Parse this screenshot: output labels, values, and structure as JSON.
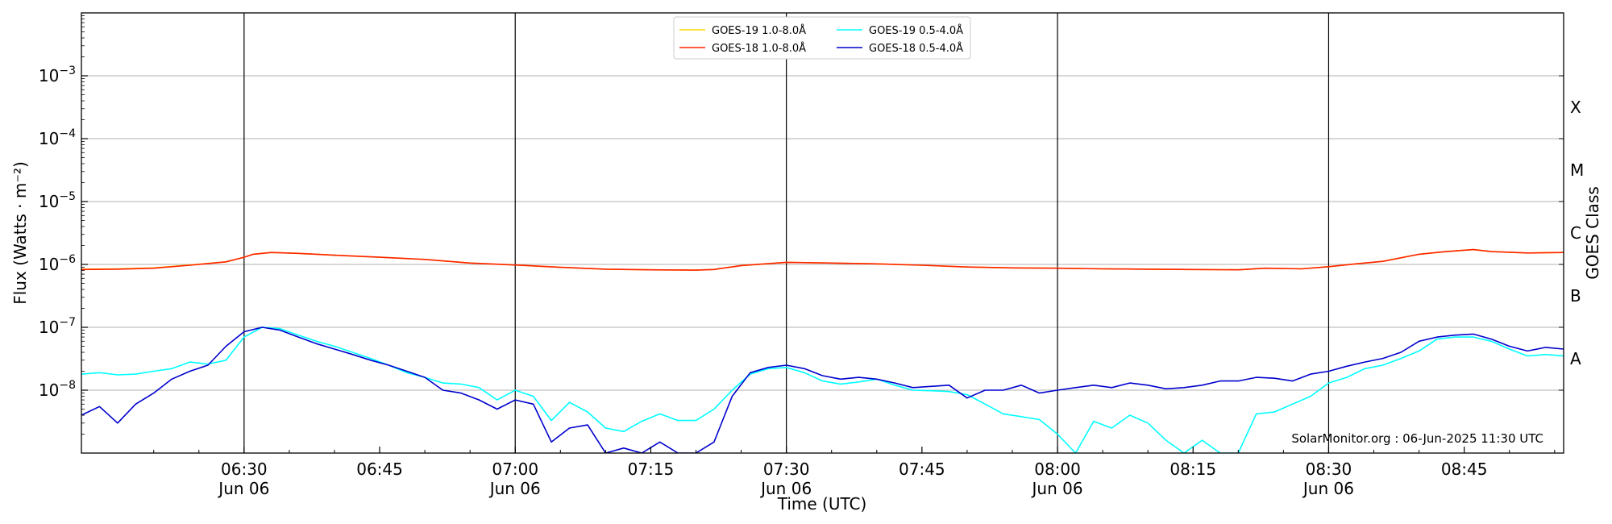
{
  "chart_data": {
    "type": "line",
    "credit": "SolarMonitor.org : 06-Jun-2025 11:30 UTC",
    "xlabel": "Time (UTC)",
    "ylabel": "Flux (Watts · m⁻²)",
    "y2label": "GOES Class",
    "yscale": "log",
    "xlim": [
      "06:12",
      "08:56"
    ],
    "ylim": [
      1e-09,
      0.01
    ],
    "grid": "horizontal at decades",
    "legend_position": "top-center",
    "x_ticks": [
      {
        "time": "06:30",
        "label": "06:30",
        "sublabel": "Jun 06"
      },
      {
        "time": "06:45",
        "label": "06:45",
        "sublabel": ""
      },
      {
        "time": "07:00",
        "label": "07:00",
        "sublabel": "Jun 06"
      },
      {
        "time": "07:15",
        "label": "07:15",
        "sublabel": ""
      },
      {
        "time": "07:30",
        "label": "07:30",
        "sublabel": "Jun 06"
      },
      {
        "time": "07:45",
        "label": "07:45",
        "sublabel": ""
      },
      {
        "time": "08:00",
        "label": "08:00",
        "sublabel": "Jun 06"
      },
      {
        "time": "08:15",
        "label": "08:15",
        "sublabel": ""
      },
      {
        "time": "08:30",
        "label": "08:30",
        "sublabel": "Jun 06"
      },
      {
        "time": "08:45",
        "label": "08:45",
        "sublabel": ""
      }
    ],
    "y_ticks": [
      {
        "exp": -3,
        "base": "10",
        "sup": "−3"
      },
      {
        "exp": -4,
        "base": "10",
        "sup": "−4"
      },
      {
        "exp": -5,
        "base": "10",
        "sup": "−5"
      },
      {
        "exp": -6,
        "base": "10",
        "sup": "−6"
      },
      {
        "exp": -7,
        "base": "10",
        "sup": "−7"
      },
      {
        "exp": -8,
        "base": "10",
        "sup": "−8"
      }
    ],
    "vlines": [
      "06:30",
      "07:00",
      "07:30",
      "08:00",
      "08:30"
    ],
    "goes_classes": [
      {
        "label": "X",
        "exp": -3.5
      },
      {
        "label": "M",
        "exp": -4.5
      },
      {
        "label": "C",
        "exp": -5.5
      },
      {
        "label": "B",
        "exp": -6.5
      },
      {
        "label": "A",
        "exp": -7.5
      }
    ],
    "series": [
      {
        "name": "GOES-19 1.0-8.0Å",
        "color": "#ffd700",
        "points": [
          [
            "06:12",
            8.4e-07
          ],
          [
            "06:16",
            8.5e-07
          ],
          [
            "06:20",
            8.8e-07
          ],
          [
            "06:24",
            9.8e-07
          ],
          [
            "06:28",
            1.1e-06
          ],
          [
            "06:30",
            1.3e-06
          ],
          [
            "06:31",
            1.45e-06
          ],
          [
            "06:33",
            1.55e-06
          ],
          [
            "06:36",
            1.5e-06
          ],
          [
            "06:40",
            1.4e-06
          ],
          [
            "06:45",
            1.3e-06
          ],
          [
            "06:50",
            1.2e-06
          ],
          [
            "06:55",
            1.05e-06
          ],
          [
            "07:00",
            9.8e-07
          ],
          [
            "07:05",
            9e-07
          ],
          [
            "07:10",
            8.4e-07
          ],
          [
            "07:15",
            8.2e-07
          ],
          [
            "07:20",
            8.1e-07
          ],
          [
            "07:22",
            8.3e-07
          ],
          [
            "07:25",
            9.6e-07
          ],
          [
            "07:30",
            1.08e-06
          ],
          [
            "07:35",
            1.05e-06
          ],
          [
            "07:40",
            1.02e-06
          ],
          [
            "07:45",
            9.7e-07
          ],
          [
            "07:50",
            9.1e-07
          ],
          [
            "07:55",
            8.8e-07
          ],
          [
            "08:00",
            8.7e-07
          ],
          [
            "08:05",
            8.5e-07
          ],
          [
            "08:10",
            8.4e-07
          ],
          [
            "08:15",
            8.3e-07
          ],
          [
            "08:20",
            8.2e-07
          ],
          [
            "08:23",
            8.7e-07
          ],
          [
            "08:27",
            8.5e-07
          ],
          [
            "08:30",
            9.2e-07
          ],
          [
            "08:33",
            1.02e-06
          ],
          [
            "08:36",
            1.12e-06
          ],
          [
            "08:40",
            1.45e-06
          ],
          [
            "08:43",
            1.6e-06
          ],
          [
            "08:46",
            1.72e-06
          ],
          [
            "08:48",
            1.6e-06
          ],
          [
            "08:52",
            1.52e-06
          ],
          [
            "08:56",
            1.55e-06
          ]
        ]
      },
      {
        "name": "GOES-18 1.0-8.0Å",
        "color": "#ff2200",
        "points": [
          [
            "06:12",
            8.3e-07
          ],
          [
            "06:16",
            8.4e-07
          ],
          [
            "06:20",
            8.7e-07
          ],
          [
            "06:24",
            9.7e-07
          ],
          [
            "06:28",
            1.1e-06
          ],
          [
            "06:30",
            1.3e-06
          ],
          [
            "06:31",
            1.45e-06
          ],
          [
            "06:33",
            1.55e-06
          ],
          [
            "06:36",
            1.5e-06
          ],
          [
            "06:40",
            1.4e-06
          ],
          [
            "06:45",
            1.3e-06
          ],
          [
            "06:50",
            1.2e-06
          ],
          [
            "06:55",
            1.05e-06
          ],
          [
            "07:00",
            9.8e-07
          ],
          [
            "07:05",
            9e-07
          ],
          [
            "07:10",
            8.4e-07
          ],
          [
            "07:15",
            8.2e-07
          ],
          [
            "07:20",
            8.1e-07
          ],
          [
            "07:22",
            8.3e-07
          ],
          [
            "07:25",
            9.6e-07
          ],
          [
            "07:30",
            1.08e-06
          ],
          [
            "07:35",
            1.05e-06
          ],
          [
            "07:40",
            1.02e-06
          ],
          [
            "07:45",
            9.7e-07
          ],
          [
            "07:50",
            9.1e-07
          ],
          [
            "07:55",
            8.8e-07
          ],
          [
            "08:00",
            8.7e-07
          ],
          [
            "08:05",
            8.5e-07
          ],
          [
            "08:10",
            8.4e-07
          ],
          [
            "08:15",
            8.3e-07
          ],
          [
            "08:20",
            8.2e-07
          ],
          [
            "08:23",
            8.7e-07
          ],
          [
            "08:27",
            8.5e-07
          ],
          [
            "08:30",
            9.2e-07
          ],
          [
            "08:33",
            1.02e-06
          ],
          [
            "08:36",
            1.12e-06
          ],
          [
            "08:40",
            1.45e-06
          ],
          [
            "08:43",
            1.6e-06
          ],
          [
            "08:46",
            1.72e-06
          ],
          [
            "08:48",
            1.6e-06
          ],
          [
            "08:52",
            1.52e-06
          ],
          [
            "08:56",
            1.55e-06
          ]
        ]
      },
      {
        "name": "GOES-19 0.5-4.0Å",
        "color": "#00ffff",
        "points": [
          [
            "06:12",
            1.8e-08
          ],
          [
            "06:14",
            1.9e-08
          ],
          [
            "06:16",
            1.75e-08
          ],
          [
            "06:18",
            1.8e-08
          ],
          [
            "06:20",
            2e-08
          ],
          [
            "06:22",
            2.2e-08
          ],
          [
            "06:24",
            2.8e-08
          ],
          [
            "06:26",
            2.6e-08
          ],
          [
            "06:28",
            3e-08
          ],
          [
            "06:30",
            7e-08
          ],
          [
            "06:32",
            1e-07
          ],
          [
            "06:34",
            9.5e-08
          ],
          [
            "06:36",
            7.5e-08
          ],
          [
            "06:38",
            6e-08
          ],
          [
            "06:40",
            5e-08
          ],
          [
            "06:42",
            4e-08
          ],
          [
            "06:44",
            3.2e-08
          ],
          [
            "06:46",
            2.5e-08
          ],
          [
            "06:48",
            1.9e-08
          ],
          [
            "06:50",
            1.6e-08
          ],
          [
            "06:52",
            1.3e-08
          ],
          [
            "06:54",
            1.25e-08
          ],
          [
            "06:56",
            1.1e-08
          ],
          [
            "06:58",
            7e-09
          ],
          [
            "07:00",
            1e-08
          ],
          [
            "07:02",
            8e-09
          ],
          [
            "07:04",
            3.3e-09
          ],
          [
            "07:06",
            6.4e-09
          ],
          [
            "07:08",
            4.5e-09
          ],
          [
            "07:10",
            2.5e-09
          ],
          [
            "07:12",
            2.2e-09
          ],
          [
            "07:14",
            3.2e-09
          ],
          [
            "07:16",
            4.2e-09
          ],
          [
            "07:18",
            3.3e-09
          ],
          [
            "07:20",
            3.3e-09
          ],
          [
            "07:22",
            5e-09
          ],
          [
            "07:24",
            1e-08
          ],
          [
            "07:26",
            1.8e-08
          ],
          [
            "07:28",
            2.2e-08
          ],
          [
            "07:30",
            2.3e-08
          ],
          [
            "07:32",
            1.9e-08
          ],
          [
            "07:34",
            1.4e-08
          ],
          [
            "07:36",
            1.25e-08
          ],
          [
            "07:38",
            1.35e-08
          ],
          [
            "07:40",
            1.5e-08
          ],
          [
            "07:42",
            1.2e-08
          ],
          [
            "07:44",
            1e-08
          ],
          [
            "07:46",
            9.8e-09
          ],
          [
            "07:48",
            9.5e-09
          ],
          [
            "07:50",
            8.5e-09
          ],
          [
            "07:52",
            6e-09
          ],
          [
            "07:54",
            4.2e-09
          ],
          [
            "07:56",
            3.8e-09
          ],
          [
            "07:58",
            3.4e-09
          ],
          [
            "08:00",
            2e-09
          ],
          [
            "08:02",
            1e-09
          ],
          [
            "08:04",
            3.2e-09
          ],
          [
            "08:06",
            2.5e-09
          ],
          [
            "08:08",
            4e-09
          ],
          [
            "08:10",
            3e-09
          ],
          [
            "08:12",
            1.6e-09
          ],
          [
            "08:14",
            1e-09
          ],
          [
            "08:16",
            1.6e-09
          ],
          [
            "08:18",
            1e-09
          ],
          [
            "08:20",
            1e-09
          ],
          [
            "08:22",
            4.2e-09
          ],
          [
            "08:24",
            4.5e-09
          ],
          [
            "08:26",
            6e-09
          ],
          [
            "08:28",
            8e-09
          ],
          [
            "08:30",
            1.3e-08
          ],
          [
            "08:32",
            1.6e-08
          ],
          [
            "08:34",
            2.2e-08
          ],
          [
            "08:36",
            2.5e-08
          ],
          [
            "08:38",
            3.2e-08
          ],
          [
            "08:40",
            4.2e-08
          ],
          [
            "08:42",
            6.5e-08
          ],
          [
            "08:44",
            7e-08
          ],
          [
            "08:46",
            7e-08
          ],
          [
            "08:48",
            6e-08
          ],
          [
            "08:50",
            4.5e-08
          ],
          [
            "08:52",
            3.5e-08
          ],
          [
            "08:54",
            3.7e-08
          ],
          [
            "08:56",
            3.5e-08
          ]
        ]
      },
      {
        "name": "GOES-18 0.5-4.0Å",
        "color": "#0000cd",
        "points": [
          [
            "06:12",
            4e-09
          ],
          [
            "06:14",
            5.5e-09
          ],
          [
            "06:16",
            3e-09
          ],
          [
            "06:18",
            6e-09
          ],
          [
            "06:20",
            9e-09
          ],
          [
            "06:22",
            1.5e-08
          ],
          [
            "06:24",
            2e-08
          ],
          [
            "06:26",
            2.5e-08
          ],
          [
            "06:28",
            5e-08
          ],
          [
            "06:30",
            8.5e-08
          ],
          [
            "06:32",
            1e-07
          ],
          [
            "06:34",
            9e-08
          ],
          [
            "06:36",
            7e-08
          ],
          [
            "06:38",
            5.5e-08
          ],
          [
            "06:40",
            4.5e-08
          ],
          [
            "06:42",
            3.7e-08
          ],
          [
            "06:44",
            3e-08
          ],
          [
            "06:46",
            2.5e-08
          ],
          [
            "06:48",
            2e-08
          ],
          [
            "06:50",
            1.6e-08
          ],
          [
            "06:52",
            1e-08
          ],
          [
            "06:54",
            9e-09
          ],
          [
            "06:56",
            7e-09
          ],
          [
            "06:58",
            5e-09
          ],
          [
            "07:00",
            7e-09
          ],
          [
            "07:02",
            6e-09
          ],
          [
            "07:04",
            1.5e-09
          ],
          [
            "07:06",
            2.5e-09
          ],
          [
            "07:08",
            2.8e-09
          ],
          [
            "07:10",
            1e-09
          ],
          [
            "07:12",
            1.2e-09
          ],
          [
            "07:14",
            1e-09
          ],
          [
            "07:16",
            1.5e-09
          ],
          [
            "07:18",
            1e-09
          ],
          [
            "07:20",
            1e-09
          ],
          [
            "07:22",
            1.5e-09
          ],
          [
            "07:24",
            8e-09
          ],
          [
            "07:26",
            1.9e-08
          ],
          [
            "07:28",
            2.3e-08
          ],
          [
            "07:30",
            2.5e-08
          ],
          [
            "07:32",
            2.2e-08
          ],
          [
            "07:34",
            1.7e-08
          ],
          [
            "07:36",
            1.5e-08
          ],
          [
            "07:38",
            1.6e-08
          ],
          [
            "07:40",
            1.5e-08
          ],
          [
            "07:42",
            1.3e-08
          ],
          [
            "07:44",
            1.1e-08
          ],
          [
            "07:46",
            1.15e-08
          ],
          [
            "07:48",
            1.2e-08
          ],
          [
            "07:50",
            7.5e-09
          ],
          [
            "07:52",
            1e-08
          ],
          [
            "07:54",
            1e-08
          ],
          [
            "07:56",
            1.2e-08
          ],
          [
            "07:58",
            9e-09
          ],
          [
            "08:00",
            1e-08
          ],
          [
            "08:02",
            1.1e-08
          ],
          [
            "08:04",
            1.2e-08
          ],
          [
            "08:06",
            1.1e-08
          ],
          [
            "08:08",
            1.3e-08
          ],
          [
            "08:10",
            1.2e-08
          ],
          [
            "08:12",
            1.05e-08
          ],
          [
            "08:14",
            1.1e-08
          ],
          [
            "08:16",
            1.2e-08
          ],
          [
            "08:18",
            1.4e-08
          ],
          [
            "08:20",
            1.4e-08
          ],
          [
            "08:22",
            1.6e-08
          ],
          [
            "08:24",
            1.55e-08
          ],
          [
            "08:26",
            1.4e-08
          ],
          [
            "08:28",
            1.8e-08
          ],
          [
            "08:30",
            2e-08
          ],
          [
            "08:32",
            2.4e-08
          ],
          [
            "08:34",
            2.8e-08
          ],
          [
            "08:36",
            3.2e-08
          ],
          [
            "08:38",
            4e-08
          ],
          [
            "08:40",
            6e-08
          ],
          [
            "08:42",
            7e-08
          ],
          [
            "08:44",
            7.5e-08
          ],
          [
            "08:46",
            7.8e-08
          ],
          [
            "08:48",
            6.5e-08
          ],
          [
            "08:50",
            5e-08
          ],
          [
            "08:52",
            4.2e-08
          ],
          [
            "08:54",
            4.8e-08
          ],
          [
            "08:56",
            4.5e-08
          ]
        ]
      }
    ]
  }
}
